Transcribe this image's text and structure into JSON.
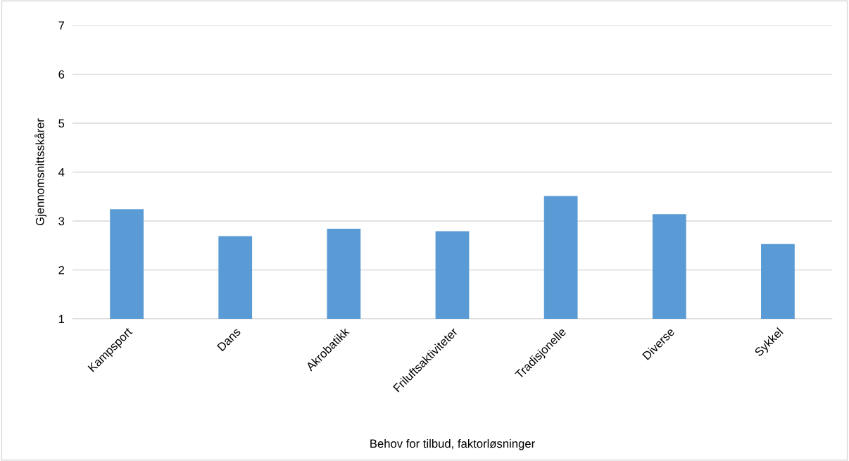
{
  "chart_data": {
    "type": "bar",
    "xlabel": "Behov for tilbud, faktorløsninger",
    "ylabel": "Gjennomsnittsskårer",
    "categories": [
      "Kampsport",
      "Dans",
      "Akrobatikk",
      "Friluftsaktiviteter",
      "Tradisjonelle",
      "Diverse",
      "Sykkel"
    ],
    "values": [
      3.24,
      2.69,
      2.84,
      2.79,
      3.51,
      3.14,
      2.53
    ],
    "color": "#5b9bd5",
    "ylim": [
      1,
      7
    ],
    "yticks": [
      1,
      2,
      3,
      4,
      5,
      6,
      7
    ],
    "grid": "y"
  }
}
